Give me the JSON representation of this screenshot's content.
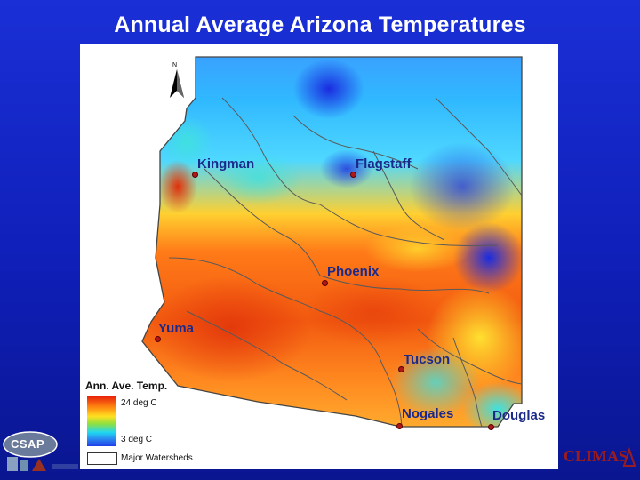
{
  "slide": {
    "title": "Annual Average Arizona Temperatures"
  },
  "map": {
    "north_label": "N",
    "cities": [
      {
        "name": "Kingman"
      },
      {
        "name": "Flagstaff"
      },
      {
        "name": "Phoenix"
      },
      {
        "name": "Yuma"
      },
      {
        "name": "Tucson"
      },
      {
        "name": "Nogales"
      },
      {
        "name": "Douglas"
      }
    ],
    "legend": {
      "title": "Ann. Ave. Temp.",
      "high_label": "24 deg C",
      "low_label": "3 deg C",
      "watersheds_label": "Major Watersheds"
    },
    "colors": {
      "hot": "#e8220c",
      "warm": "#ff8a10",
      "mid": "#ffe020",
      "cool": "#20d8f0",
      "cold": "#2040e8"
    }
  },
  "logos": {
    "left": "CSAP",
    "right": "CLIMAS"
  }
}
